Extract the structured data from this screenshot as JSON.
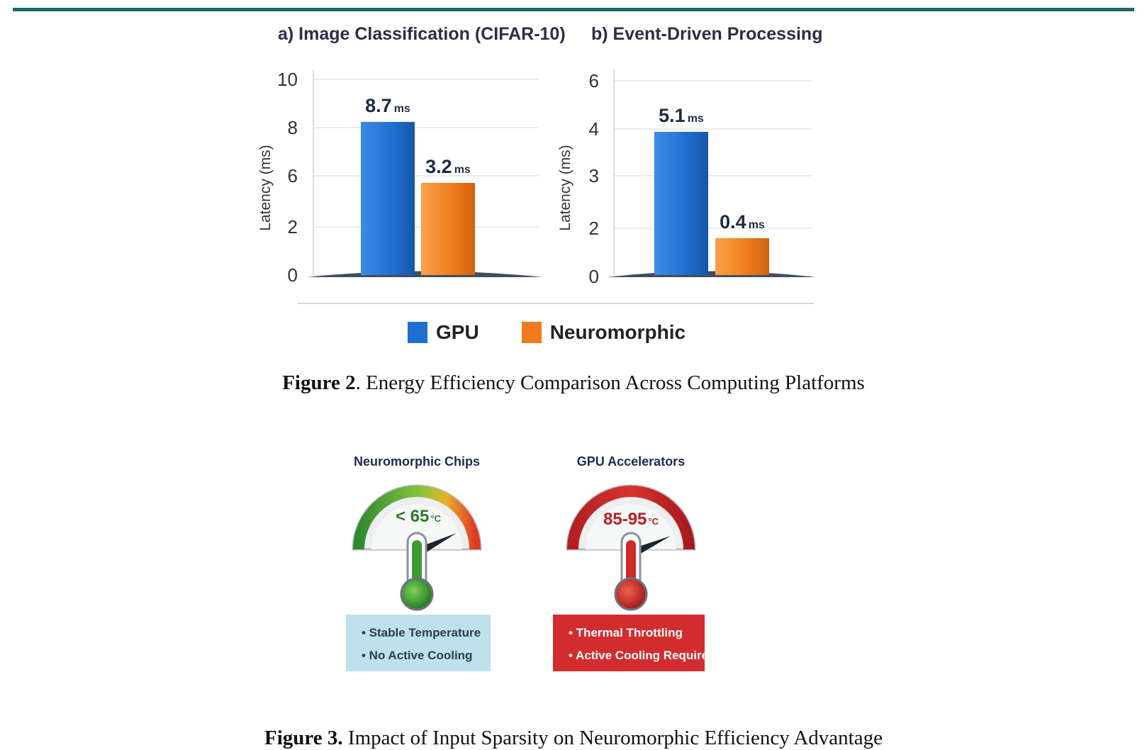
{
  "figure2": {
    "label": "Figure 2",
    "text": ". Energy Efficiency Comparison Across Computing Platforms",
    "legend": [
      {
        "name": "GPU",
        "color": "#1f6fd1"
      },
      {
        "name": "Neuromorphic",
        "color": "#f07b1c"
      }
    ]
  },
  "chart_data": [
    {
      "type": "bar",
      "title": "a) Image Classification (CIFAR-10)",
      "xlabel": "",
      "ylabel": "Latency (ms)",
      "ytick_labels": [
        "0",
        "2",
        "6",
        "8",
        "10"
      ],
      "categories": [
        "GPU",
        "Neuromorphic"
      ],
      "values": [
        8.7,
        3.2
      ],
      "value_labels": [
        "8.7",
        "3.2"
      ],
      "unit": "ms"
    },
    {
      "type": "bar",
      "title": "b) Event-Driven Processing",
      "xlabel": "",
      "ylabel": "Latency (ms)",
      "ytick_labels": [
        "0",
        "2",
        "3",
        "4",
        "6"
      ],
      "categories": [
        "GPU",
        "Neuromorphic"
      ],
      "values": [
        5.1,
        0.4
      ],
      "value_labels": [
        "5.1",
        "0.4"
      ],
      "unit": "ms"
    }
  ],
  "figure3": {
    "label": "Figure 3.",
    "text": " Impact of Input Sparsity on Neuromorphic Efficiency Advantage",
    "gauges": [
      {
        "title": "Neuromorphic Chips",
        "reading": "< 65",
        "unit": "°C",
        "notes": [
          "• Stable Temperature",
          "• No Active Cooling"
        ],
        "color": "#2e8b2e"
      },
      {
        "title": "GPU Accelerators",
        "reading": "85-95",
        "unit": "°C",
        "notes": [
          "• Thermal Throttling",
          "• Active Cooling Required"
        ],
        "color": "#c8282b"
      }
    ]
  }
}
